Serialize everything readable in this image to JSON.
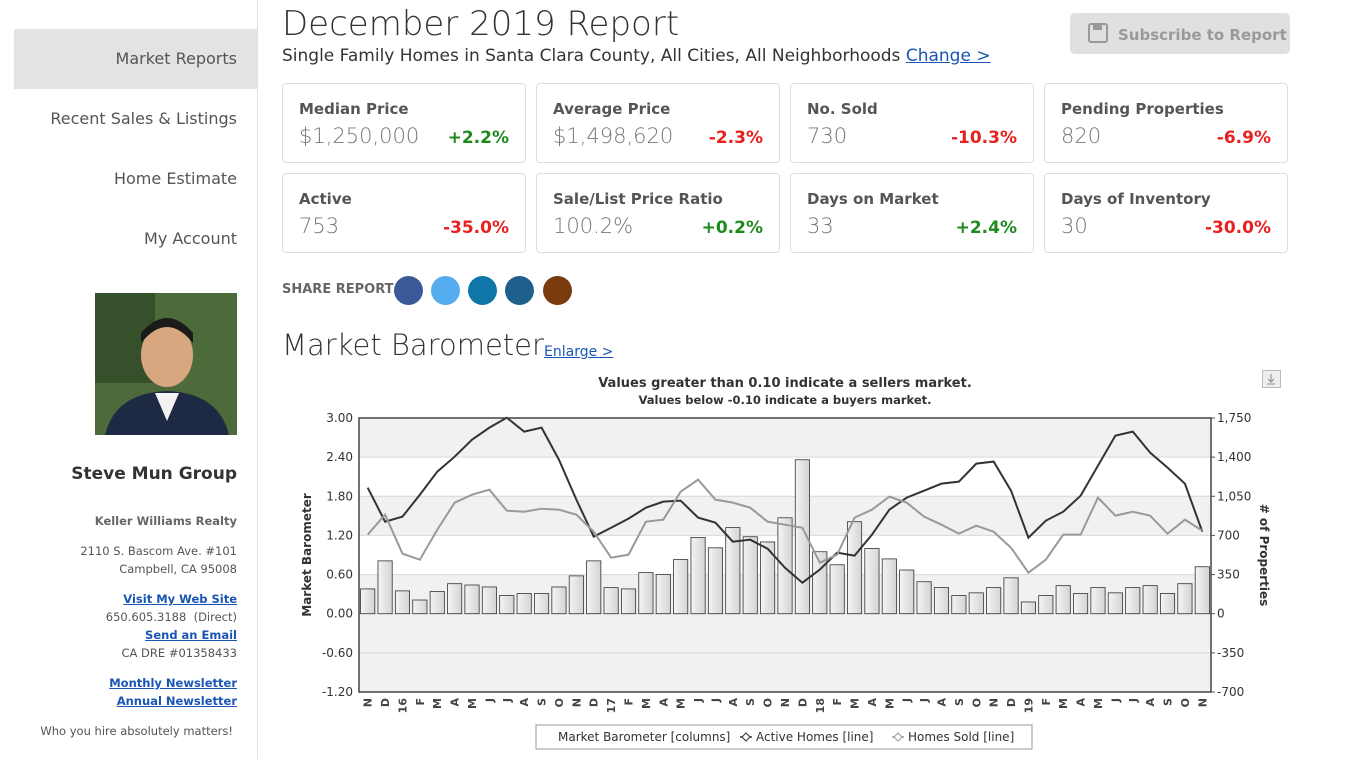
{
  "sidebar": {
    "nav": [
      "Market Reports",
      "Recent Sales & Listings",
      "Home Estimate",
      "My Account"
    ],
    "name": "Steve Mun Group",
    "company": "Keller Williams Realty",
    "address": [
      "2110 S. Bascom Ave. #101",
      "Campbell, CA 95008"
    ],
    "website": "Visit My Web Site",
    "phone": "650.605.3188  (Direct)",
    "email": "Send an Email",
    "license": "CA DRE #01358433",
    "newsletters": [
      "Monthly Newsletter",
      "Annual Newsletter"
    ],
    "tagline": "Who you hire absolutely matters!"
  },
  "header": {
    "title": "December 2019 Report",
    "subtitle": "Single Family Homes in Santa Clara County, All Cities, All Neighborhoods",
    "change": "Change >",
    "subscribe": "Subscribe to Report"
  },
  "stats": [
    {
      "label": "Median Price",
      "value": "$1,250,000",
      "change": "+2.2%"
    },
    {
      "label": "Average Price",
      "value": "$1,498,620",
      "change": "-2.3%"
    },
    {
      "label": "No. Sold",
      "value": "730",
      "change": "-10.3%"
    },
    {
      "label": "Pending Properties",
      "value": "820",
      "change": "-6.9%"
    },
    {
      "label": "Active",
      "value": "753",
      "change": "-35.0%"
    },
    {
      "label": "Sale/List Price Ratio",
      "value": "100.2%",
      "change": "+0.2%"
    },
    {
      "label": "Days on Market",
      "value": "33",
      "change": "+2.4%"
    },
    {
      "label": "Days of Inventory",
      "value": "30",
      "change": "-30.0%"
    }
  ],
  "share_label": "SHARE REPORT",
  "section_title": "Market Barometer",
  "enlarge": "Enlarge >",
  "chart_data": {
    "type": "combo",
    "title": "Values greater than 0.10 indicate a sellers market.",
    "subtitle": "Values below -0.10 indicate a buyers market.",
    "y_label": "Market Barometer",
    "y2_label": "# of Properties",
    "categories": [
      "N",
      "D",
      "16",
      "F",
      "M",
      "A",
      "M",
      "J",
      "J",
      "A",
      "S",
      "O",
      "N",
      "D",
      "17",
      "F",
      "M",
      "A",
      "M",
      "J",
      "J",
      "A",
      "S",
      "O",
      "N",
      "D",
      "18",
      "F",
      "M",
      "A",
      "M",
      "J",
      "J",
      "A",
      "S",
      "O",
      "N",
      "D",
      "19",
      "F",
      "M",
      "A",
      "M",
      "J",
      "J",
      "A",
      "S",
      "O",
      "N"
    ],
    "ylim": [
      -1.2,
      3.0
    ],
    "yticks": [
      {
        "value": -1.2,
        "label": "-1.20"
      },
      {
        "value": -0.6,
        "label": "-0.60"
      },
      {
        "value": 0,
        "label": "0.00"
      },
      {
        "value": 0.6,
        "label": "0.60"
      },
      {
        "value": 1.2,
        "label": "1.20"
      },
      {
        "value": 1.8,
        "label": "1.80"
      },
      {
        "value": 2.4,
        "label": "2.40"
      },
      {
        "value": 3.0,
        "label": "3.00"
      }
    ],
    "y2lim": [
      -700,
      1750
    ],
    "y2ticks": [
      -700,
      -350,
      0,
      350,
      700,
      {
        "value": 1050,
        "label": "1,050"
      },
      {
        "value": 1400,
        "label": "1,400"
      },
      {
        "value": 1750,
        "label": "1,750"
      }
    ],
    "grid": true,
    "legend": "bottom",
    "series": [
      {
        "name": "Market Barometer [columns]",
        "kind": "bar",
        "color": "#d4d4d4",
        "values": [
          0.38,
          0.81,
          0.35,
          0.21,
          0.34,
          0.46,
          0.44,
          0.41,
          0.28,
          0.31,
          0.31,
          0.41,
          0.58,
          0.81,
          0.4,
          0.38,
          0.63,
          0.6,
          0.83,
          1.17,
          1.01,
          1.32,
          1.18,
          1.1,
          1.47,
          2.36,
          0.95,
          0.75,
          1.41,
          1.0,
          0.84,
          0.67,
          0.49,
          0.4,
          0.28,
          0.32,
          0.4,
          0.55,
          0.18,
          0.28,
          0.43,
          0.31,
          0.4,
          0.32,
          0.4,
          0.43,
          0.31,
          0.46,
          0.72
        ]
      },
      {
        "name": "Active Homes [line]",
        "kind": "line",
        "axis": "y2",
        "color": "#333333",
        "values": [
          1127,
          823,
          868,
          1064,
          1270,
          1404,
          1556,
          1664,
          1753,
          1628,
          1664,
          1377,
          1020,
          689,
          769,
          850,
          948,
          1002,
          1011,
          859,
          814,
          644,
          662,
          581,
          411,
          277,
          394,
          546,
          519,
          707,
          930,
          1038,
          1100,
          1163,
          1181,
          1342,
          1360,
          1100,
          680,
          832,
          912,
          1055,
          1324,
          1592,
          1628,
          1440,
          1306,
          1163,
          733
        ]
      },
      {
        "name": "Homes Sold [line]",
        "kind": "line",
        "axis": "y2",
        "color": "#999999",
        "values": [
          707,
          886,
          537,
          483,
          751,
          993,
          1064,
          1109,
          921,
          912,
          939,
          930,
          886,
          733,
          501,
          528,
          823,
          841,
          1091,
          1199,
          1020,
          993,
          948,
          823,
          796,
          769,
          456,
          528,
          859,
          930,
          1047,
          993,
          868,
          796,
          716,
          787,
          733,
          590,
          367,
          483,
          707,
          707,
          1038,
          877,
          912,
          877,
          716,
          841,
          742
        ]
      }
    ]
  }
}
